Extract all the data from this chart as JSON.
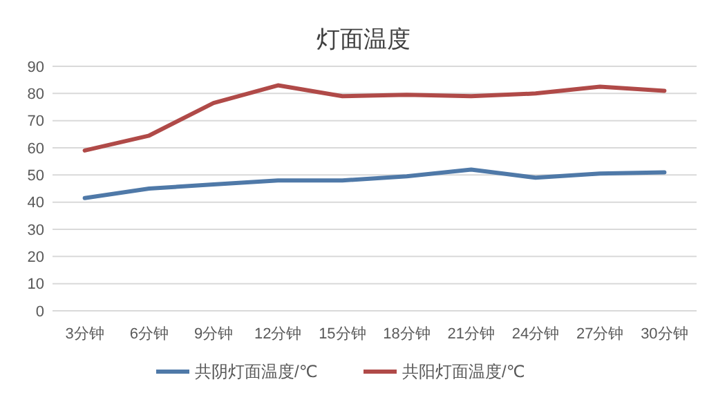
{
  "chart_data": {
    "type": "line",
    "title": "灯面温度",
    "categories": [
      "3分钟",
      "6分钟",
      "9分钟",
      "12分钟",
      "15分钟",
      "18分钟",
      "21分钟",
      "24分钟",
      "27分钟",
      "30分钟"
    ],
    "series": [
      {
        "name": "共阴灯面温度/℃",
        "color": "#4f79a8",
        "values": [
          41.5,
          45,
          46.5,
          48,
          48,
          49.5,
          52,
          49,
          50.5,
          51
        ]
      },
      {
        "name": "共阳灯面温度/℃",
        "color": "#b04a48",
        "values": [
          59,
          64.5,
          76.5,
          83,
          79,
          79.5,
          79,
          80,
          82.5,
          81
        ]
      }
    ],
    "ylim": [
      0,
      90
    ],
    "yticks": [
      0,
      10,
      20,
      30,
      40,
      50,
      60,
      70,
      80,
      90
    ],
    "grid": "y",
    "legend": "bottom",
    "marker": "none",
    "line_style": "solid"
  }
}
